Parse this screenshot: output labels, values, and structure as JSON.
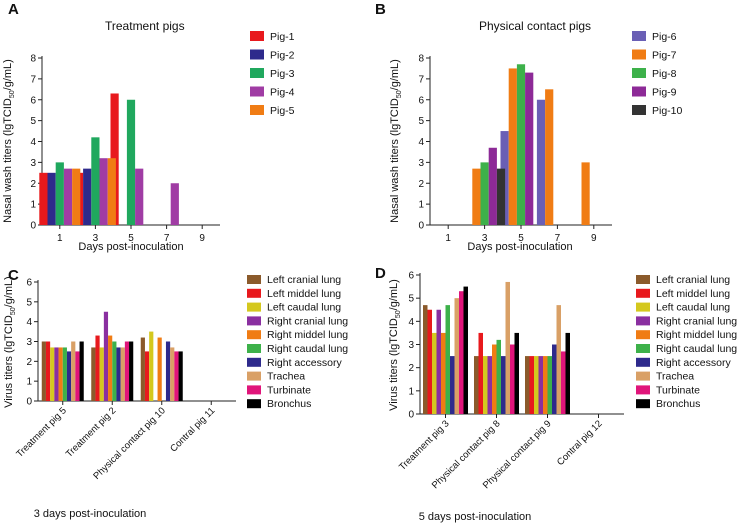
{
  "chart_data": [
    {
      "panel_letter": "A",
      "type": "bar",
      "title": "Treatment pigs",
      "ylabel_parts": [
        "Nasal wash titers (lgTCID",
        "50",
        "/g/mL)"
      ],
      "xlabel": "Days post-inoculation",
      "ylim": [
        0,
        8
      ],
      "yticks": [
        0,
        1,
        2,
        3,
        4,
        5,
        6,
        7,
        8
      ],
      "categories": [
        "1",
        "3",
        "5",
        "7",
        "9"
      ],
      "series": [
        {
          "name": "Pig-1",
          "color": "#e8191d",
          "values": [
            2.5,
            2.5,
            6.3,
            null,
            null
          ]
        },
        {
          "name": "Pig-2",
          "color": "#2e2a8c",
          "values": [
            2.5,
            2.7,
            null,
            null,
            null
          ]
        },
        {
          "name": "Pig-3",
          "color": "#20a85e",
          "values": [
            3.0,
            4.2,
            6.0,
            null,
            null
          ]
        },
        {
          "name": "Pig-4",
          "color": "#a03ca4",
          "values": [
            2.7,
            3.2,
            2.7,
            2.0,
            null
          ]
        },
        {
          "name": "Pig-5",
          "color": "#f07c14",
          "values": [
            2.7,
            3.2,
            null,
            null,
            null
          ]
        }
      ]
    },
    {
      "panel_letter": "B",
      "type": "bar",
      "title": "Physical contact pigs",
      "ylabel_parts": [
        "Nasal wash titers (lgTCID",
        "50",
        "/g/mL)"
      ],
      "xlabel": "Days post-inoculation",
      "ylim": [
        0,
        8
      ],
      "yticks": [
        0,
        1,
        2,
        3,
        4,
        5,
        6,
        7,
        8
      ],
      "categories": [
        "1",
        "3",
        "5",
        "7",
        "9"
      ],
      "series": [
        {
          "name": "Pig-6",
          "color": "#6a5fb5",
          "values": [
            null,
            null,
            4.5,
            6.0,
            null
          ]
        },
        {
          "name": "Pig-7",
          "color": "#f07c14",
          "values": [
            null,
            2.7,
            7.5,
            6.5,
            3.0
          ]
        },
        {
          "name": "Pig-8",
          "color": "#3db14a",
          "values": [
            null,
            3.0,
            7.7,
            null,
            null
          ]
        },
        {
          "name": "Pig-9",
          "color": "#8d2a97",
          "values": [
            null,
            3.7,
            7.3,
            null,
            null
          ]
        },
        {
          "name": "Pig-10",
          "color": "#333333",
          "values": [
            null,
            2.7,
            null,
            null,
            null
          ]
        }
      ]
    },
    {
      "panel_letter": "C",
      "type": "bar",
      "title": "",
      "ylabel_parts": [
        "Virus titers (lgTCID",
        "50",
        "/g/mL)"
      ],
      "xlabel": "3 days post-inoculation",
      "ylim": [
        0,
        6
      ],
      "yticks": [
        0,
        1,
        2,
        3,
        4,
        5,
        6
      ],
      "categories": [
        "Treatment pig 5",
        "Treatment pig 2",
        "Physical contact pig 10",
        "Contral pig 11"
      ],
      "series": [
        {
          "name": "Left cranial lung",
          "color": "#8b5a2b",
          "values": [
            3.0,
            2.7,
            3.2,
            null
          ]
        },
        {
          "name": "Left middel lung",
          "color": "#e8191d",
          "values": [
            3.0,
            3.3,
            2.5,
            null
          ]
        },
        {
          "name": "Left caudal lung",
          "color": "#d4c81e",
          "values": [
            2.7,
            2.7,
            3.5,
            null
          ]
        },
        {
          "name": "Right cranial lung",
          "color": "#8a2fa0",
          "values": [
            2.7,
            4.5,
            null,
            null
          ]
        },
        {
          "name": "Right middel lung",
          "color": "#f07c14",
          "values": [
            2.7,
            3.3,
            3.2,
            null
          ]
        },
        {
          "name": "Right caudal lung",
          "color": "#3db14a",
          "values": [
            2.7,
            3.0,
            null,
            null
          ]
        },
        {
          "name": "Right accessory",
          "color": "#2e2a8c",
          "values": [
            2.5,
            2.7,
            3.0,
            null
          ]
        },
        {
          "name": "Trachea",
          "color": "#d9a066",
          "values": [
            3.0,
            2.7,
            2.7,
            null
          ]
        },
        {
          "name": "Turbinate",
          "color": "#e0157a",
          "values": [
            2.5,
            3.0,
            2.5,
            null
          ]
        },
        {
          "name": "Bronchus",
          "color": "#000000",
          "values": [
            3.0,
            3.0,
            2.5,
            null
          ]
        }
      ]
    },
    {
      "panel_letter": "D",
      "type": "bar",
      "title": "",
      "ylabel_parts": [
        "Virus titers (lgTCID",
        "50",
        "/g/mL)"
      ],
      "xlabel": "5 days post-inoculation",
      "ylim": [
        0,
        6
      ],
      "yticks": [
        0,
        1,
        2,
        3,
        4,
        5,
        6
      ],
      "categories": [
        "Treatment pig 3",
        "Physical contact pig 8",
        "Physical contact pig 9",
        "Contral pig 12"
      ],
      "series": [
        {
          "name": "Left cranial lung",
          "color": "#8b5a2b",
          "values": [
            4.7,
            2.5,
            2.5,
            null
          ]
        },
        {
          "name": "Left middel lung",
          "color": "#e8191d",
          "values": [
            4.5,
            3.5,
            2.5,
            null
          ]
        },
        {
          "name": "Left caudal lung",
          "color": "#d4c81e",
          "values": [
            3.5,
            2.5,
            2.5,
            null
          ]
        },
        {
          "name": "Right cranial lung",
          "color": "#8a2fa0",
          "values": [
            4.5,
            2.5,
            2.5,
            null
          ]
        },
        {
          "name": "Right middel lung",
          "color": "#f07c14",
          "values": [
            3.5,
            3.0,
            2.5,
            null
          ]
        },
        {
          "name": "Right caudal lung",
          "color": "#3db14a",
          "values": [
            4.7,
            3.2,
            2.5,
            null
          ]
        },
        {
          "name": "Right accessory",
          "color": "#2e2a8c",
          "values": [
            2.5,
            2.5,
            3.0,
            null
          ]
        },
        {
          "name": "Trachea",
          "color": "#d9a066",
          "values": [
            5.0,
            5.7,
            4.7,
            null
          ]
        },
        {
          "name": "Turbinate",
          "color": "#e0157a",
          "values": [
            5.3,
            3.0,
            2.7,
            null
          ]
        },
        {
          "name": "Bronchus",
          "color": "#000000",
          "values": [
            5.5,
            3.5,
            3.5,
            null
          ]
        }
      ]
    }
  ]
}
